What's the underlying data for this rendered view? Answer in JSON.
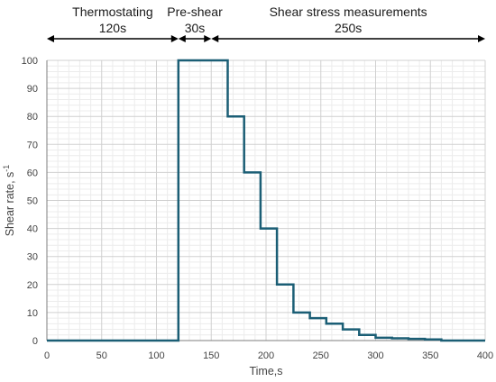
{
  "chart_data": {
    "type": "line",
    "xlabel": "Time,s",
    "ylabel": "Shear rate, s",
    "ylabel_superscript": "-1",
    "xlim": [
      0,
      400
    ],
    "ylim": [
      0,
      100
    ],
    "xticks": [
      0,
      50,
      100,
      150,
      200,
      250,
      300,
      350,
      400
    ],
    "yticks": [
      0,
      10,
      20,
      30,
      40,
      50,
      60,
      70,
      80,
      90,
      100
    ],
    "grid": true,
    "phases": [
      {
        "name": "Thermostating",
        "duration": "120s",
        "start": 0,
        "end": 120
      },
      {
        "name": "Pre-shear",
        "duration": "30s",
        "start": 120,
        "end": 150
      },
      {
        "name": "Shear stress measurements",
        "duration": "250s",
        "start": 150,
        "end": 400
      }
    ],
    "series": [
      {
        "x": [
          0,
          120,
          120,
          165,
          165,
          180,
          180,
          195,
          195,
          210,
          210,
          225,
          225,
          240,
          240,
          255,
          255,
          270,
          270,
          285,
          285,
          300,
          300,
          315,
          315,
          330,
          330,
          345,
          345,
          360,
          360,
          400
        ],
        "y": [
          0,
          0,
          100,
          100,
          80,
          80,
          60,
          60,
          40,
          40,
          20,
          20,
          10,
          10,
          8,
          8,
          6,
          6,
          4,
          4,
          2,
          2,
          1,
          1,
          0.8,
          0.8,
          0.6,
          0.6,
          0.4,
          0.4,
          0,
          0
        ]
      }
    ],
    "colors": {
      "line": "#1b5e75",
      "grid_major": "#d0d0d0",
      "grid_minor": "#ececec",
      "axis": "#7f7f7f",
      "arrow": "#000000"
    }
  }
}
